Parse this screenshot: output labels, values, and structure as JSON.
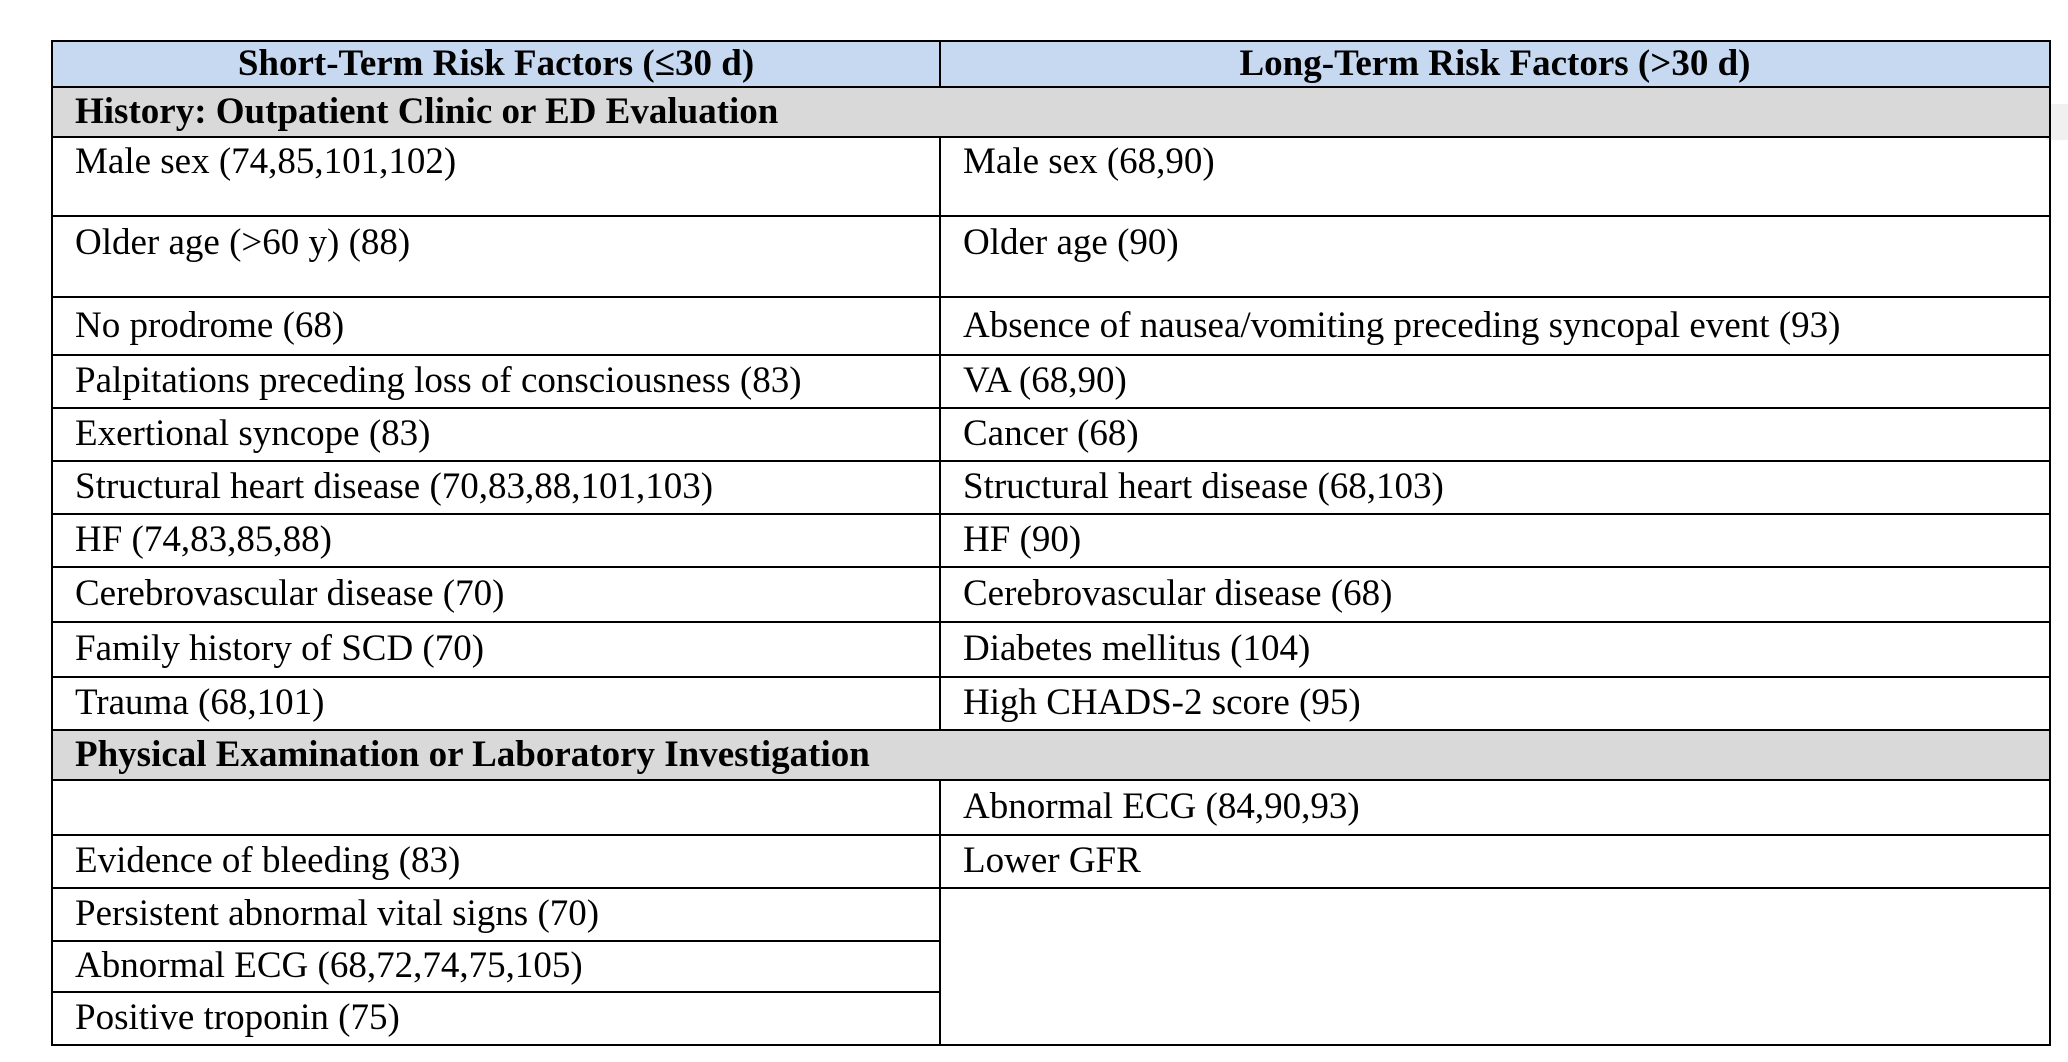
{
  "table": {
    "headers": [
      "Short-Term Risk Factors (≤30 d)",
      "Long-Term Risk Factors (>30 d)"
    ],
    "sections": [
      {
        "title": "History: Outpatient Clinic or ED Evaluation",
        "rows": [
          [
            "Male sex (74,85,101,102)",
            "Male sex (68,90)"
          ],
          [
            "Older age (>60 y) (88)",
            "Older age (90)"
          ],
          [
            "No prodrome (68)",
            "Absence of nausea/vomiting preceding syncopal event (93)"
          ],
          [
            "Palpitations preceding loss of consciousness (83)",
            "VA (68,90)"
          ],
          [
            "Exertional syncope (83)",
            "Cancer (68)"
          ],
          [
            "Structural heart disease (70,83,88,101,103)",
            "Structural heart disease (68,103)"
          ],
          [
            "HF (74,83,85,88)",
            "HF (90)"
          ],
          [
            "Cerebrovascular disease (70)",
            "Cerebrovascular disease (68)"
          ],
          [
            "Family history of SCD (70)",
            "Diabetes mellitus (104)"
          ],
          [
            "Trauma (68,101)",
            "High CHADS-2 score (95)"
          ]
        ]
      },
      {
        "title": "Physical Examination or Laboratory Investigation",
        "rows": [
          [
            "",
            "Abnormal ECG (84,90,93)"
          ],
          [
            "Evidence of bleeding (83)",
            "Lower GFR"
          ],
          [
            "Persistent abnormal vital signs (70)",
            ""
          ],
          [
            "Abnormal ECG (68,72,74,75,105)",
            ""
          ],
          [
            "Positive troponin (75)",
            ""
          ]
        ]
      }
    ]
  }
}
